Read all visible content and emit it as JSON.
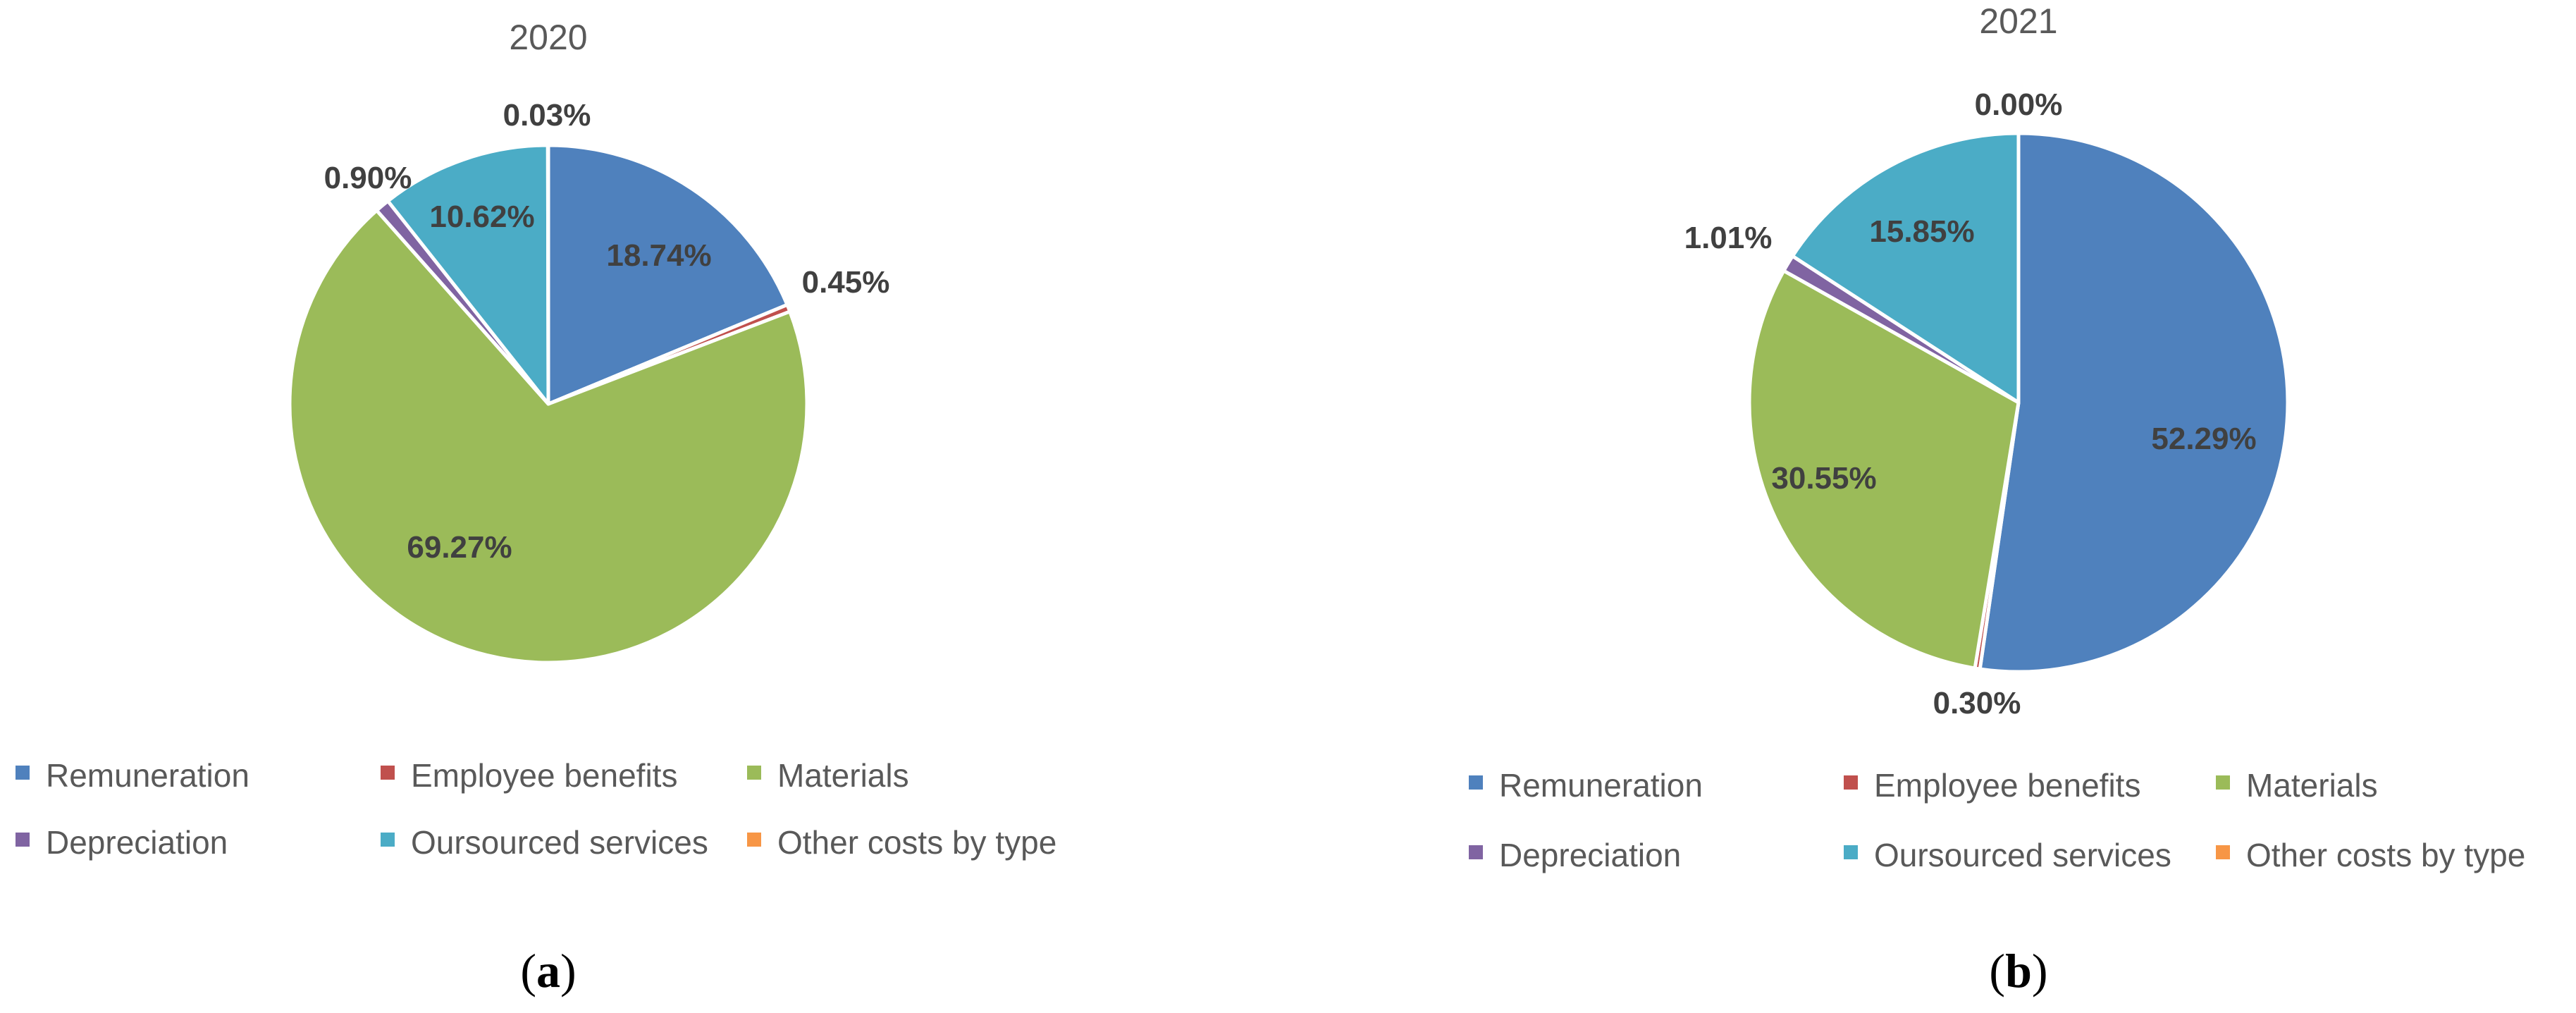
{
  "chart_data": [
    {
      "type": "pie",
      "title": "2020",
      "caption_letter": "a",
      "categories": [
        "Remuneration",
        "Employee benefits",
        "Materials",
        "Depreciation",
        "Oursourced services",
        "Other costs by type"
      ],
      "values": [
        18.74,
        0.45,
        69.27,
        0.9,
        10.62,
        0.03
      ],
      "labels": [
        "18.74%",
        "0.45%",
        "69.27%",
        "0.90%",
        "10.62%",
        "0.03%"
      ],
      "legend_position": "bottom"
    },
    {
      "type": "pie",
      "title": "2021",
      "caption_letter": "b",
      "categories": [
        "Remuneration",
        "Employee benefits",
        "Materials",
        "Depreciation",
        "Oursourced services",
        "Other costs by type"
      ],
      "values": [
        52.29,
        0.3,
        30.55,
        1.01,
        15.85,
        0.0
      ],
      "labels": [
        "52.29%",
        "0.30%",
        "30.55%",
        "1.01%",
        "15.85%",
        "0.00%"
      ],
      "legend_position": "bottom"
    }
  ],
  "colors": {
    "Remuneration": "#4f81bd",
    "Employee benefits": "#c0504d",
    "Materials": "#9bbb59",
    "Depreciation": "#8064a2",
    "Oursourced services": "#4bacc6",
    "Other costs by type": "#f79646"
  }
}
